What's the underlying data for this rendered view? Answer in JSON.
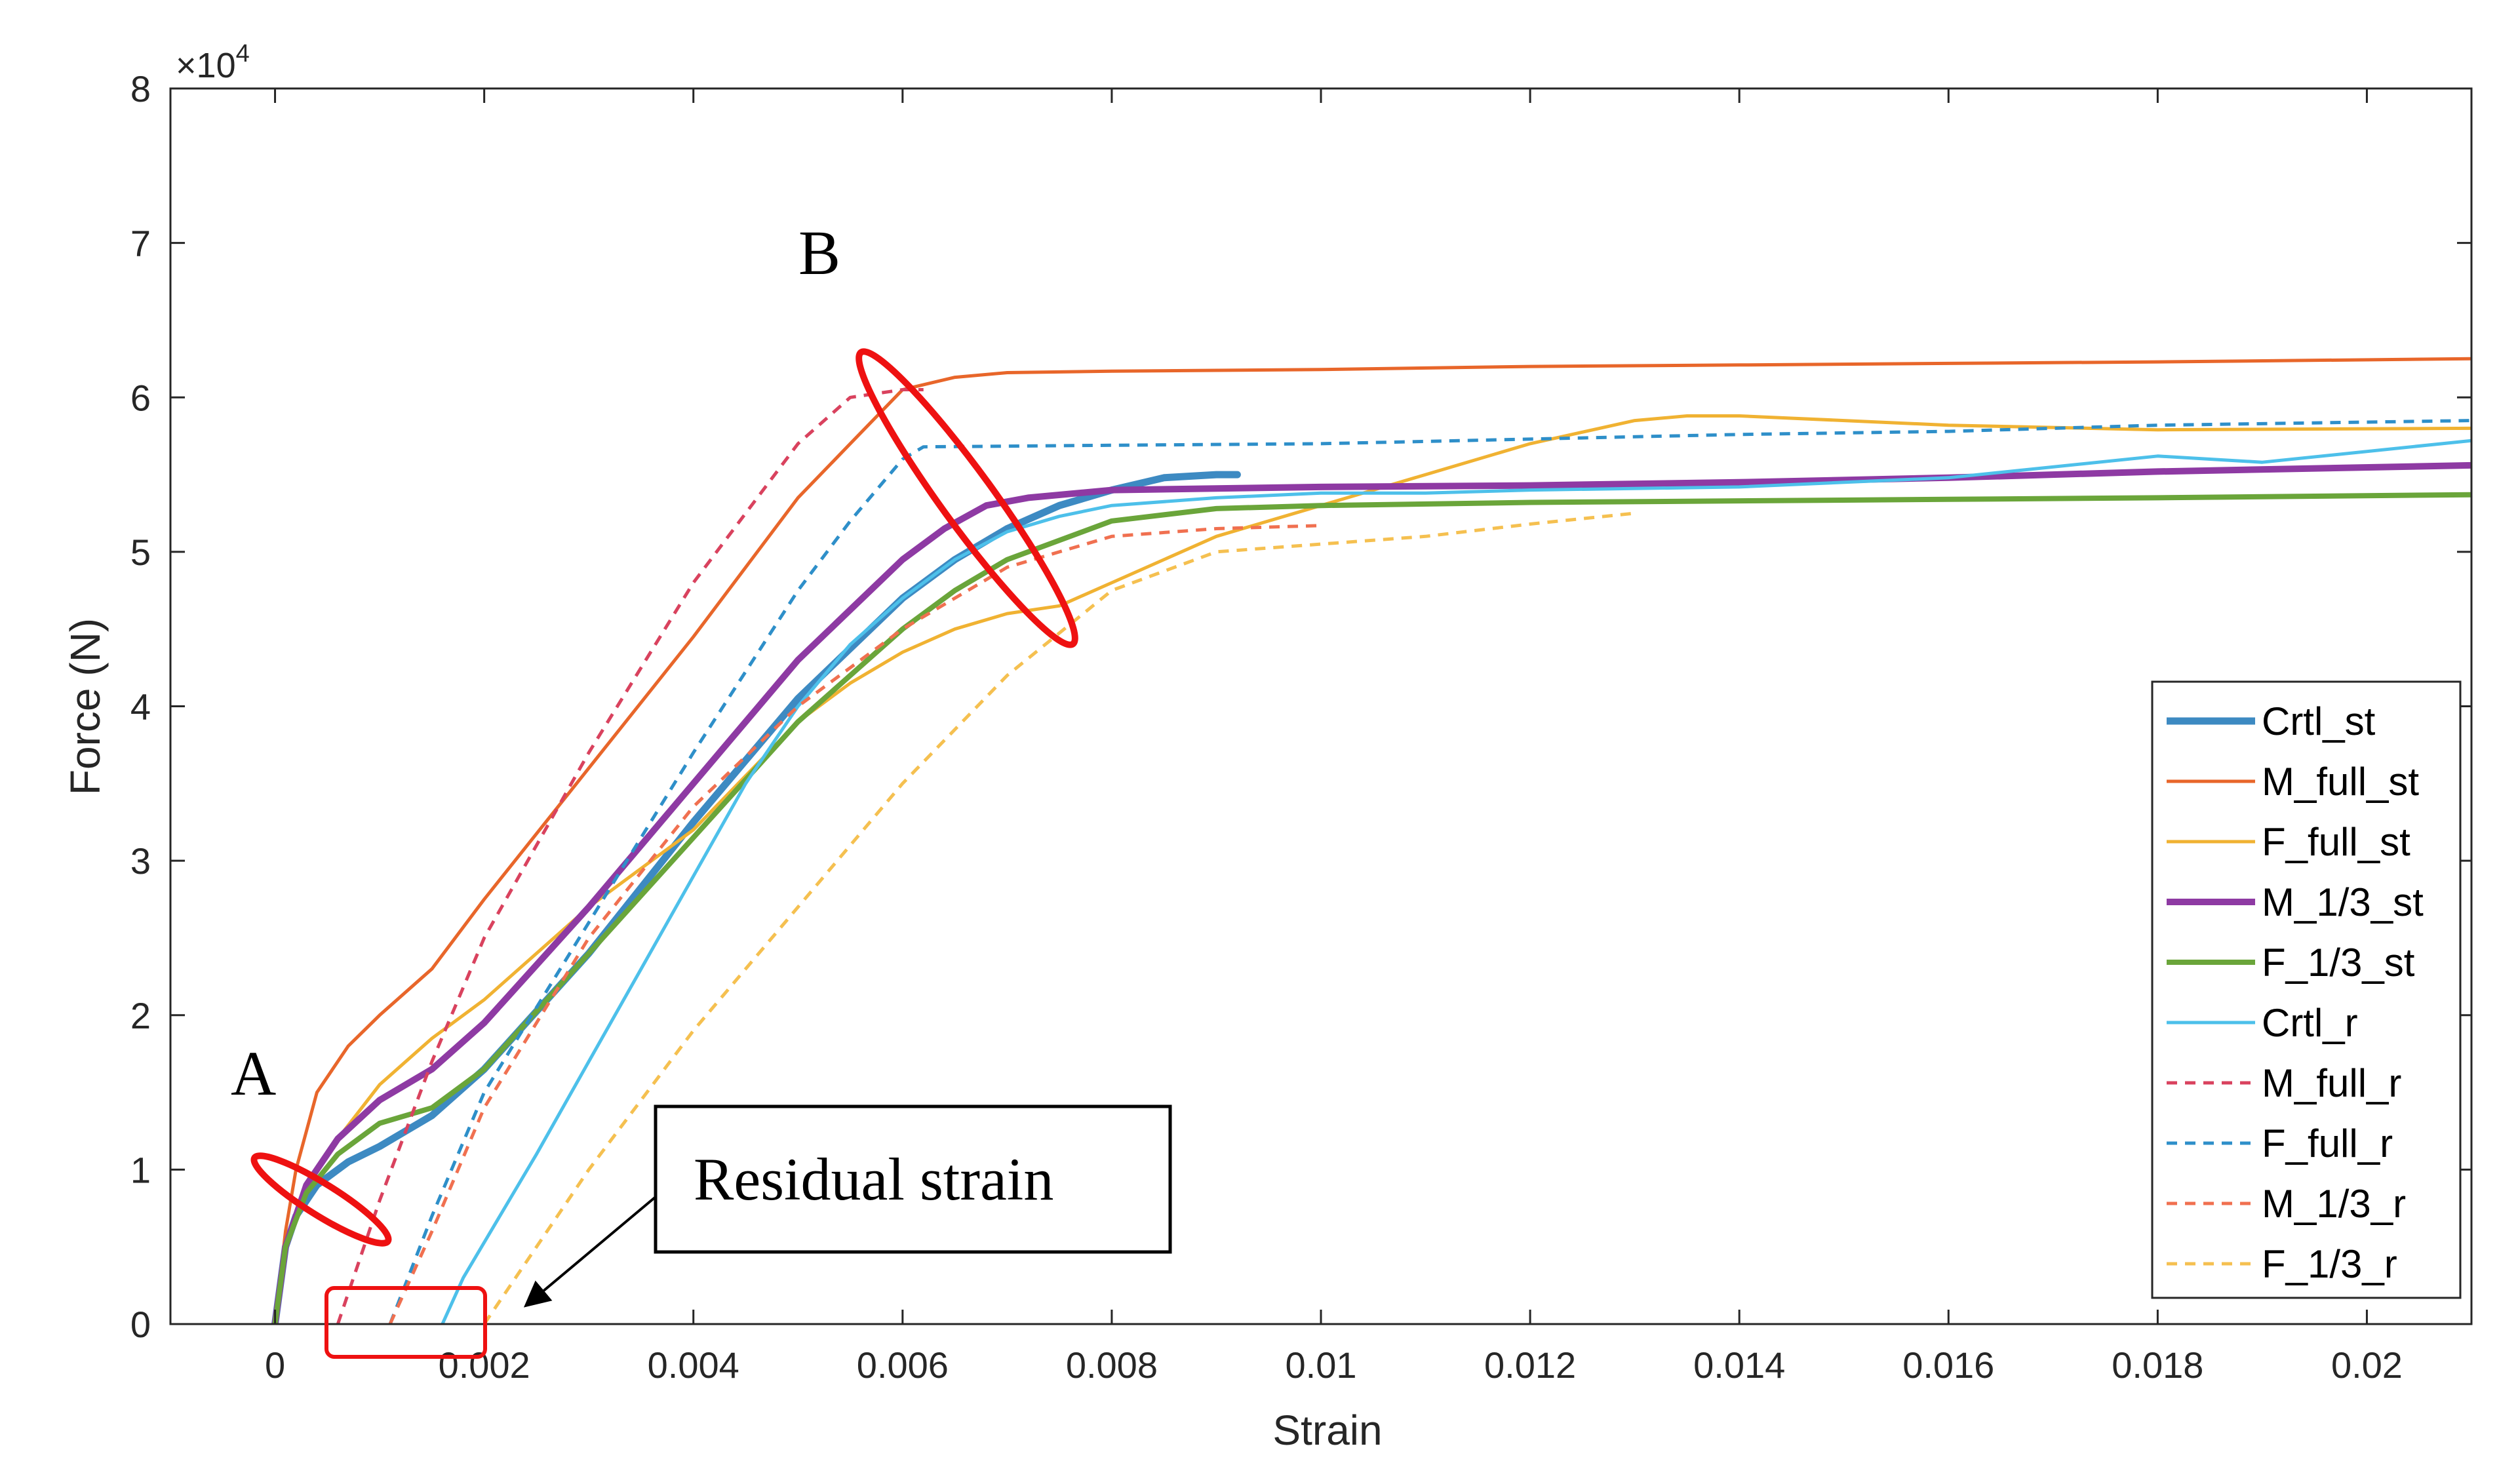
{
  "chart_data": {
    "type": "line",
    "title": "",
    "xlabel": "Strain",
    "ylabel": "Force (N)",
    "y_multiplier_label": "×10",
    "y_multiplier_exp": "4",
    "xlim": [
      -0.001,
      0.021
    ],
    "ylim": [
      0,
      80000
    ],
    "grid": false,
    "legend_position": "right",
    "x_ticks": [
      0,
      0.002,
      0.004,
      0.006,
      0.008,
      0.01,
      0.012,
      0.014,
      0.016,
      0.018,
      0.02
    ],
    "x_tick_labels": [
      "0",
      "0.002",
      "0.004",
      "0.006",
      "0.008",
      "0.01",
      "0.012",
      "0.014",
      "0.016",
      "0.018",
      "0.02"
    ],
    "y_ticks": [
      0,
      10000,
      20000,
      30000,
      40000,
      50000,
      60000,
      70000,
      80000
    ],
    "y_tick_labels": [
      "0",
      "1",
      "2",
      "3",
      "4",
      "5",
      "6",
      "7",
      "8"
    ],
    "series": [
      {
        "name": "Crtl_st",
        "color": "#3d8ac2",
        "dash": "solid",
        "width": 11,
        "x": [
          0,
          0.0001,
          0.0002,
          0.0004,
          0.0007,
          0.001,
          0.0015,
          0.002,
          0.003,
          0.004,
          0.005,
          0.006,
          0.0065,
          0.007,
          0.0075,
          0.008,
          0.0085,
          0.009,
          0.0092
        ],
        "y": [
          0,
          5000,
          7000,
          9000,
          10500,
          11500,
          13500,
          16500,
          24000,
          32500,
          40500,
          47000,
          49500,
          51500,
          53000,
          54000,
          54800,
          55000,
          55000
        ]
      },
      {
        "name": "M_full_st",
        "color": "#e8662a",
        "dash": "solid",
        "width": 5,
        "x": [
          0,
          0.0001,
          0.0002,
          0.0004,
          0.0007,
          0.001,
          0.0015,
          0.002,
          0.003,
          0.004,
          0.005,
          0.0055,
          0.006,
          0.0065,
          0.007,
          0.008,
          0.01,
          0.012,
          0.014,
          0.016,
          0.018,
          0.021
        ],
        "y": [
          0,
          6000,
          10000,
          15000,
          18000,
          20000,
          23000,
          27500,
          36000,
          44500,
          53500,
          57000,
          60500,
          61300,
          61600,
          61700,
          61800,
          62000,
          62100,
          62200,
          62300,
          62500
        ]
      },
      {
        "name": "F_full_st",
        "color": "#f0b232",
        "dash": "solid",
        "width": 5,
        "x": [
          0,
          0.0001,
          0.0003,
          0.0006,
          0.001,
          0.0015,
          0.002,
          0.0025,
          0.003,
          0.0035,
          0.004,
          0.0045,
          0.005,
          0.0055,
          0.006,
          0.0065,
          0.007,
          0.0075,
          0.008,
          0.009,
          0.01,
          0.011,
          0.012,
          0.013,
          0.0135,
          0.014,
          0.016,
          0.018,
          0.021
        ],
        "y": [
          0,
          5000,
          9000,
          12000,
          15500,
          18500,
          21000,
          24000,
          27000,
          29500,
          32000,
          35500,
          39000,
          41500,
          43500,
          45000,
          46000,
          46500,
          48000,
          51000,
          53000,
          55000,
          57000,
          58500,
          58800,
          58800,
          58200,
          57900,
          58000
        ]
      },
      {
        "name": "M_1/3_st",
        "color": "#8e3aa3",
        "dash": "solid",
        "width": 10,
        "x": [
          0,
          0.0001,
          0.0003,
          0.0006,
          0.001,
          0.0015,
          0.002,
          0.003,
          0.004,
          0.005,
          0.006,
          0.0064,
          0.0068,
          0.0072,
          0.008,
          0.01,
          0.012,
          0.014,
          0.016,
          0.018,
          0.021
        ],
        "y": [
          0,
          5000,
          9000,
          12000,
          14500,
          16500,
          19500,
          27000,
          35000,
          43000,
          49500,
          51500,
          53000,
          53500,
          54000,
          54200,
          54300,
          54500,
          54800,
          55200,
          55600
        ]
      },
      {
        "name": "F_1/3_st",
        "color": "#6aa53a",
        "dash": "solid",
        "width": 8,
        "x": [
          0,
          0.0001,
          0.0003,
          0.0006,
          0.001,
          0.0015,
          0.002,
          0.003,
          0.004,
          0.005,
          0.006,
          0.0065,
          0.007,
          0.008,
          0.009,
          0.01,
          0.012,
          0.014,
          0.016,
          0.018,
          0.021
        ],
        "y": [
          0,
          5000,
          8500,
          11000,
          13000,
          14000,
          16500,
          24000,
          31500,
          39000,
          45000,
          47500,
          49500,
          52000,
          52800,
          53000,
          53200,
          53300,
          53400,
          53500,
          53700
        ]
      },
      {
        "name": "Crtl_r",
        "color": "#4dc0ea",
        "dash": "solid",
        "width": 5,
        "x": [
          0.0016,
          0.0018,
          0.0025,
          0.003,
          0.0035,
          0.004,
          0.0045,
          0.005,
          0.0055,
          0.006,
          0.0065,
          0.007,
          0.0075,
          0.008,
          0.009,
          0.01,
          0.011,
          0.012,
          0.014,
          0.016,
          0.018,
          0.019,
          0.021
        ],
        "y": [
          0,
          3000,
          11000,
          17000,
          23000,
          29000,
          35000,
          40000,
          44000,
          47000,
          49500,
          51300,
          52300,
          53000,
          53500,
          53800,
          53800,
          54000,
          54200,
          54800,
          56200,
          55800,
          57200
        ]
      },
      {
        "name": "M_full_r",
        "color": "#d9425e",
        "dash": "dashed",
        "width": 5,
        "x": [
          0.0006,
          0.001,
          0.0015,
          0.002,
          0.003,
          0.004,
          0.005,
          0.0055,
          0.006,
          0.0062
        ],
        "y": [
          0,
          8000,
          17000,
          25000,
          37000,
          48000,
          57000,
          60000,
          60500,
          60500
        ]
      },
      {
        "name": "F_full_r",
        "color": "#2e8fc9",
        "dash": "dashed",
        "width": 5,
        "x": [
          0.0011,
          0.0015,
          0.002,
          0.003,
          0.004,
          0.005,
          0.0055,
          0.006,
          0.0062,
          0.008,
          0.01,
          0.012,
          0.014,
          0.016,
          0.018,
          0.021
        ],
        "y": [
          0,
          7000,
          15000,
          26000,
          37000,
          47500,
          52000,
          56000,
          56800,
          56900,
          57000,
          57300,
          57600,
          57800,
          58200,
          58500
        ]
      },
      {
        "name": "M_1/3_r",
        "color": "#f07050",
        "dash": "dashed",
        "width": 5,
        "x": [
          0.0011,
          0.0015,
          0.002,
          0.003,
          0.004,
          0.005,
          0.006,
          0.007,
          0.008,
          0.009,
          0.01
        ],
        "y": [
          0,
          6000,
          14000,
          25000,
          33500,
          40000,
          45000,
          49000,
          51000,
          51500,
          51700
        ]
      },
      {
        "name": "F_1/3_r",
        "color": "#f5c050",
        "dash": "dashed",
        "width": 5,
        "x": [
          0.002,
          0.0025,
          0.003,
          0.004,
          0.005,
          0.006,
          0.007,
          0.008,
          0.009,
          0.01,
          0.011,
          0.012,
          0.013
        ],
        "y": [
          0,
          5000,
          10000,
          19000,
          27000,
          35000,
          42000,
          47500,
          50000,
          50500,
          51000,
          51800,
          52500
        ]
      }
    ],
    "annotations": {
      "point_a": "A",
      "point_b": "B",
      "residual_label": "Residual strain"
    }
  }
}
